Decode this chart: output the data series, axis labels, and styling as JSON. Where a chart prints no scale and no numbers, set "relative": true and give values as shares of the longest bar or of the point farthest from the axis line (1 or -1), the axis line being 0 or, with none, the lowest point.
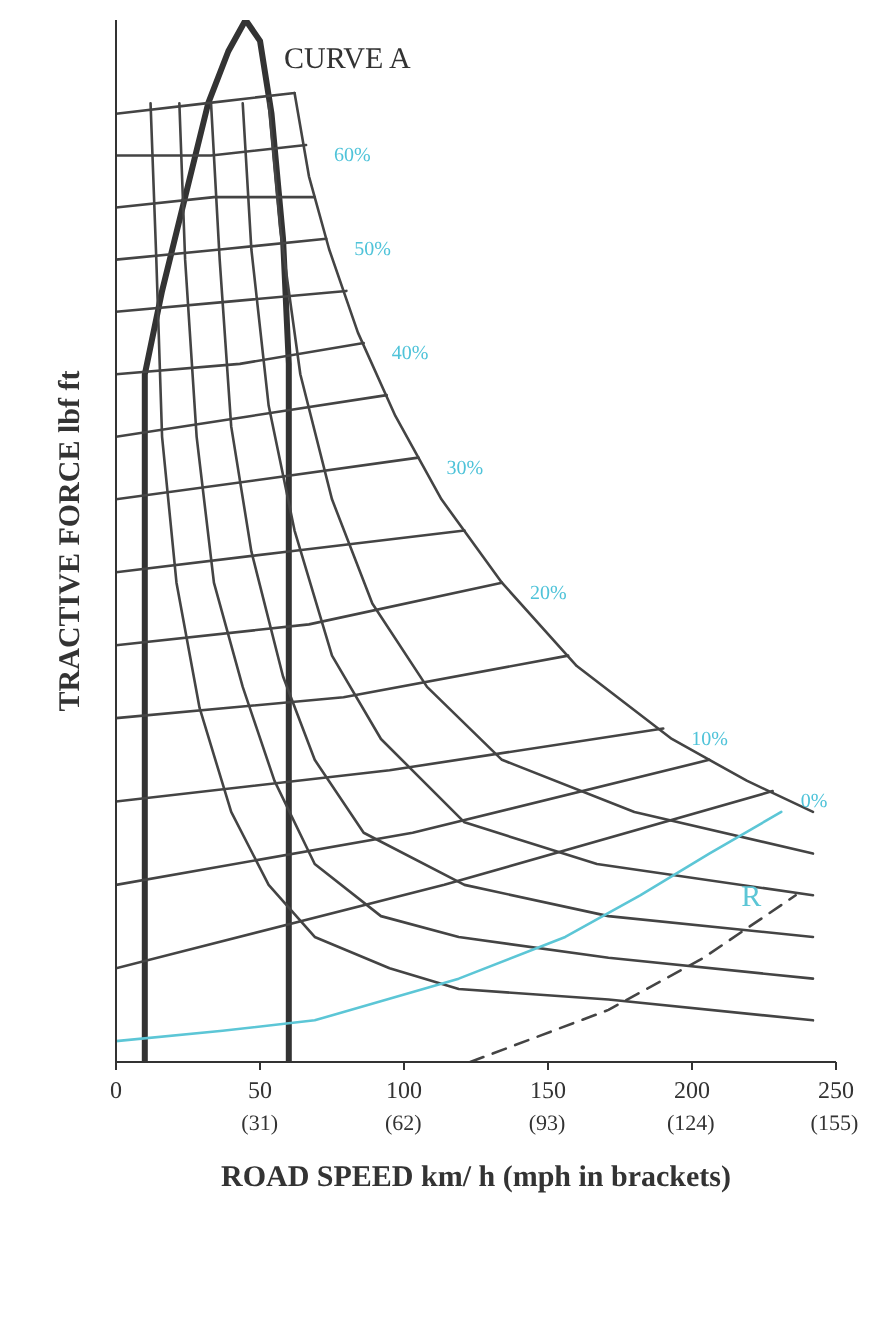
{
  "chart_data": {
    "type": "line",
    "relative": true,
    "xlabel": "ROAD SPEED km/ h (mph in brackets)",
    "ylabel": "TRACTIVE FORCE lbf ft",
    "xlim": [
      0,
      250
    ],
    "xticks": [
      0,
      50,
      100,
      150,
      200,
      250
    ],
    "x2lim": [
      0,
      155.34
    ],
    "x2ticks": [
      {
        "value": 31,
        "label": "(31)"
      },
      {
        "value": 62,
        "label": "(62)"
      },
      {
        "value": 93,
        "label": "(93)"
      },
      {
        "value": 124,
        "label": "(124)"
      },
      {
        "value": 155,
        "label": "(155)"
      }
    ],
    "grid": false,
    "legend": false,
    "marker": "none",
    "line_style": "solid",
    "annotations": [
      "CURVE A",
      {
        "text": "60%",
        "x": 66,
        "y": 0.88
      },
      {
        "text": "50%",
        "x": 73,
        "y": 0.79
      },
      {
        "text": "40%",
        "x": 86,
        "y": 0.69
      },
      {
        "text": "30%",
        "x": 105,
        "y": 0.58
      },
      {
        "text": "20%",
        "x": 134,
        "y": 0.46
      },
      {
        "text": "10%",
        "x": 190,
        "y": 0.32
      },
      {
        "text": "0%",
        "x": 228,
        "y": 0.26
      }
    ],
    "series": [
      {
        "color": "#333333",
        "x": [
          10,
          10,
          16,
          24,
          32,
          39,
          45,
          50,
          54,
          58,
          60,
          60
        ],
        "values": [
          0,
          0.66,
          0.74,
          0.83,
          0.92,
          0.97,
          1.0,
          0.98,
          0.91,
          0.79,
          0.67,
          0
        ]
      },
      {
        "color": "#444444",
        "x": [
          12,
          14,
          16,
          21,
          29,
          40,
          53,
          69,
          95,
          119,
          171,
          242
        ],
        "values": [
          0.92,
          0.77,
          0.6,
          0.46,
          0.34,
          0.24,
          0.17,
          0.12,
          0.09,
          0.07,
          0.06,
          0.04
        ]
      },
      {
        "color": "#444444",
        "x": [
          22,
          24,
          28,
          34,
          44,
          55,
          69,
          92,
          119,
          171,
          242
        ],
        "values": [
          0.92,
          0.77,
          0.6,
          0.46,
          0.36,
          0.27,
          0.19,
          0.14,
          0.12,
          0.1,
          0.08
        ]
      },
      {
        "color": "#444444",
        "x": [
          33,
          36,
          40,
          47,
          58,
          69,
          86,
          121,
          171,
          242
        ],
        "values": [
          0.92,
          0.77,
          0.61,
          0.49,
          0.37,
          0.29,
          0.22,
          0.17,
          0.14,
          0.12
        ]
      },
      {
        "color": "#444444",
        "x": [
          44,
          47,
          53,
          62,
          75,
          92,
          121,
          167,
          242
        ],
        "values": [
          0.92,
          0.78,
          0.63,
          0.51,
          0.39,
          0.31,
          0.23,
          0.19,
          0.16
        ]
      },
      {
        "color": "#444444",
        "x": [
          53,
          57,
          64,
          75,
          89,
          108,
          134,
          180,
          242
        ],
        "values": [
          0.92,
          0.8,
          0.66,
          0.54,
          0.44,
          0.36,
          0.29,
          0.24,
          0.2
        ]
      },
      {
        "color": "#444444",
        "x": [
          62,
          67,
          74,
          84,
          97,
          113,
          134,
          160,
          193,
          219,
          242
        ],
        "values": [
          0.93,
          0.85,
          0.78,
          0.7,
          0.62,
          0.54,
          0.46,
          0.38,
          0.31,
          0.27,
          0.24
        ]
      },
      {
        "color": "#444444",
        "x": [
          0,
          31,
          62
        ],
        "values": [
          0.91,
          0.92,
          0.93
        ]
      },
      {
        "color": "#444444",
        "x": [
          0,
          33,
          66
        ],
        "values": [
          0.87,
          0.87,
          0.88
        ]
      },
      {
        "color": "#444444",
        "x": [
          0,
          34,
          69
        ],
        "values": [
          0.82,
          0.83,
          0.83
        ]
      },
      {
        "color": "#444444",
        "x": [
          0,
          37,
          73
        ],
        "values": [
          0.77,
          0.78,
          0.79
        ]
      },
      {
        "color": "#444444",
        "x": [
          0,
          40,
          80
        ],
        "values": [
          0.72,
          0.73,
          0.74
        ]
      },
      {
        "color": "#444444",
        "x": [
          0,
          43,
          86
        ],
        "values": [
          0.66,
          0.67,
          0.69
        ]
      },
      {
        "color": "#444444",
        "x": [
          0,
          47,
          94
        ],
        "values": [
          0.6,
          0.62,
          0.64
        ]
      },
      {
        "color": "#444444",
        "x": [
          0,
          53,
          105
        ],
        "values": [
          0.54,
          0.56,
          0.58
        ]
      },
      {
        "color": "#444444",
        "x": [
          0,
          60,
          121
        ],
        "values": [
          0.47,
          0.49,
          0.51
        ]
      },
      {
        "color": "#444444",
        "x": [
          0,
          67,
          134
        ],
        "values": [
          0.4,
          0.42,
          0.46
        ]
      },
      {
        "color": "#444444",
        "x": [
          0,
          79,
          157
        ],
        "values": [
          0.33,
          0.35,
          0.39
        ]
      },
      {
        "color": "#444444",
        "x": [
          0,
          95,
          190
        ],
        "values": [
          0.25,
          0.28,
          0.32
        ]
      },
      {
        "color": "#444444",
        "x": [
          0,
          103,
          206
        ],
        "values": [
          0.17,
          0.22,
          0.29
        ]
      },
      {
        "color": "#444444",
        "x": [
          0,
          114,
          228
        ],
        "values": [
          0.09,
          0.17,
          0.26
        ]
      },
      {
        "name": "R",
        "color": "#5cc6d6",
        "x": [
          0,
          37,
          69,
          119,
          156,
          182,
          206,
          231
        ],
        "values": [
          0.02,
          0.03,
          0.04,
          0.08,
          0.12,
          0.16,
          0.2,
          0.24
        ]
      },
      {
        "color": "#444444",
        "line_style": "dashed",
        "x": [
          123,
          171,
          204,
          236
        ],
        "values": [
          0,
          0.05,
          0.1,
          0.16
        ]
      }
    ]
  }
}
